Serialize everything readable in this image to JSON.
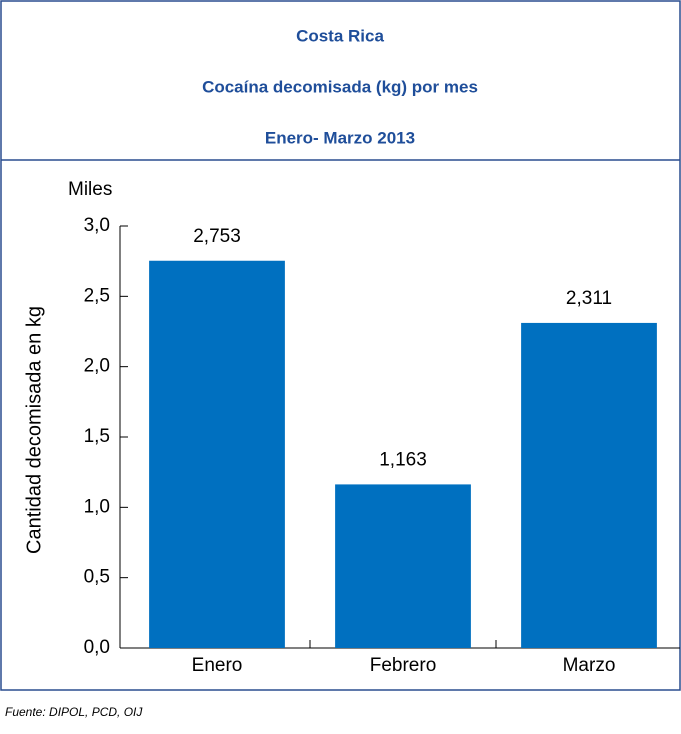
{
  "chart_data": {
    "type": "bar",
    "title": "Costa Rica",
    "subtitle": "Cocaína decomisada (kg) por mes",
    "period": "Enero- Marzo 2013",
    "unit_label": "Miles",
    "ylabel": "Cantidad decomisada en kg",
    "source": "Fuente: DIPOL, PCD, OIJ",
    "categories": [
      "Enero",
      "Febrero",
      "Marzo"
    ],
    "values": [
      2.753,
      1.163,
      2.311
    ],
    "value_labels": [
      "2,753",
      "1,163",
      "2,311"
    ],
    "color": "#0070c0",
    "ylim": [
      0,
      3
    ],
    "yticks": [
      {
        "value": 0,
        "label": "0,0"
      },
      {
        "value": 0.5,
        "label": "0,5"
      },
      {
        "value": 1,
        "label": "1,0"
      },
      {
        "value": 1.5,
        "label": "1,5"
      },
      {
        "value": 2,
        "label": "2,0"
      },
      {
        "value": 2.5,
        "label": "2,5"
      },
      {
        "value": 3,
        "label": "3,0"
      }
    ],
    "grid": false
  }
}
